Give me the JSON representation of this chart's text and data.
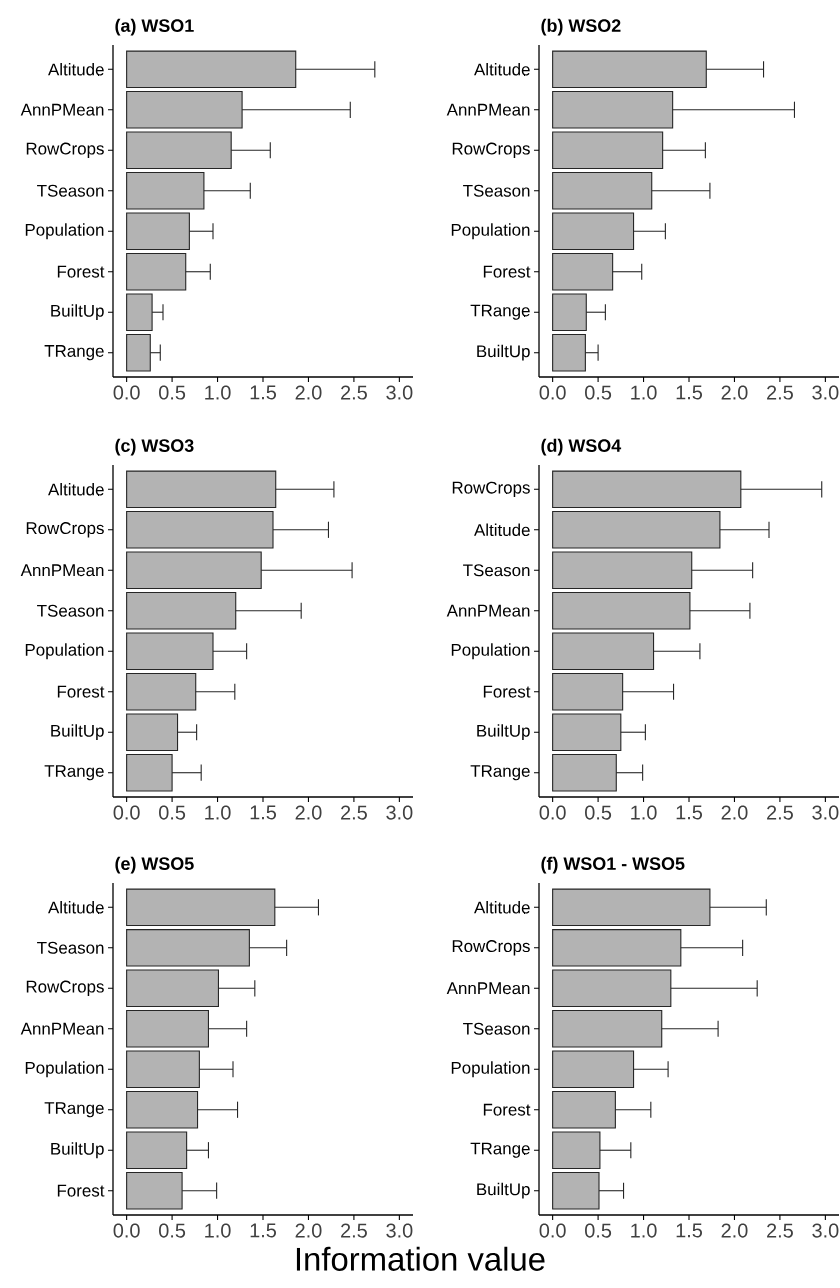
{
  "chart_data": [
    {
      "type": "bar",
      "orientation": "horizontal",
      "title": "(a) WSO1",
      "color": "#b3b3b3",
      "categories": [
        "Altitude",
        "AnnPMean",
        "RowCrops",
        "TSeason",
        "Population",
        "Forest",
        "BuiltUp",
        "TRange"
      ],
      "values": [
        1.86,
        1.27,
        1.15,
        0.85,
        0.69,
        0.65,
        0.28,
        0.26
      ],
      "errors": [
        [
          1.86,
          2.73
        ],
        [
          1.27,
          2.46
        ],
        [
          1.15,
          1.58
        ],
        [
          0.85,
          1.36
        ],
        [
          0.69,
          0.95
        ],
        [
          0.65,
          0.92
        ],
        [
          0.28,
          0.4
        ],
        [
          0.26,
          0.37
        ]
      ],
      "xlim": [
        -0.15,
        3.15
      ],
      "xticks": [
        {
          "value": 0,
          "label": "0.0"
        },
        {
          "value": 0.5,
          "label": "0.5"
        },
        {
          "value": 1,
          "label": "1.0"
        },
        {
          "value": 1.5,
          "label": "1.5"
        },
        {
          "value": 2,
          "label": "2.0"
        },
        {
          "value": 2.5,
          "label": "2.5"
        },
        {
          "value": 3,
          "label": "3.0"
        }
      ]
    },
    {
      "type": "bar",
      "orientation": "horizontal",
      "title": "(b) WSO2",
      "color": "#b3b3b3",
      "categories": [
        "Altitude",
        "AnnPMean",
        "RowCrops",
        "TSeason",
        "Population",
        "Forest",
        "TRange",
        "BuiltUp"
      ],
      "values": [
        1.69,
        1.32,
        1.21,
        1.09,
        0.89,
        0.66,
        0.37,
        0.36
      ],
      "errors": [
        [
          1.69,
          2.32
        ],
        [
          1.32,
          2.66
        ],
        [
          1.21,
          1.68
        ],
        [
          1.09,
          1.73
        ],
        [
          0.89,
          1.24
        ],
        [
          0.66,
          0.98
        ],
        [
          0.37,
          0.58
        ],
        [
          0.36,
          0.5
        ]
      ],
      "xlim": [
        -0.15,
        3.15
      ],
      "xticks": [
        {
          "value": 0,
          "label": "0.0"
        },
        {
          "value": 0.5,
          "label": "0.5"
        },
        {
          "value": 1,
          "label": "1.0"
        },
        {
          "value": 1.5,
          "label": "1.5"
        },
        {
          "value": 2,
          "label": "2.0"
        },
        {
          "value": 2.5,
          "label": "2.5"
        },
        {
          "value": 3,
          "label": "3.0"
        }
      ]
    },
    {
      "type": "bar",
      "orientation": "horizontal",
      "title": "(c) WSO3",
      "color": "#b3b3b3",
      "categories": [
        "Altitude",
        "RowCrops",
        "AnnPMean",
        "TSeason",
        "Population",
        "Forest",
        "BuiltUp",
        "TRange"
      ],
      "values": [
        1.64,
        1.61,
        1.48,
        1.2,
        0.95,
        0.76,
        0.56,
        0.5
      ],
      "errors": [
        [
          1.64,
          2.28
        ],
        [
          1.61,
          2.22
        ],
        [
          1.48,
          2.48
        ],
        [
          1.2,
          1.92
        ],
        [
          0.95,
          1.32
        ],
        [
          0.76,
          1.19
        ],
        [
          0.56,
          0.77
        ],
        [
          0.5,
          0.82
        ]
      ],
      "xlim": [
        -0.15,
        3.15
      ],
      "xticks": [
        {
          "value": 0,
          "label": "0.0"
        },
        {
          "value": 0.5,
          "label": "0.5"
        },
        {
          "value": 1,
          "label": "1.0"
        },
        {
          "value": 1.5,
          "label": "1.5"
        },
        {
          "value": 2,
          "label": "2.0"
        },
        {
          "value": 2.5,
          "label": "2.5"
        },
        {
          "value": 3,
          "label": "3.0"
        }
      ]
    },
    {
      "type": "bar",
      "orientation": "horizontal",
      "title": "(d) WSO4",
      "color": "#b3b3b3",
      "categories": [
        "RowCrops",
        "Altitude",
        "TSeason",
        "AnnPMean",
        "Population",
        "Forest",
        "BuiltUp",
        "TRange"
      ],
      "values": [
        2.07,
        1.84,
        1.53,
        1.51,
        1.11,
        0.77,
        0.75,
        0.7
      ],
      "errors": [
        [
          2.07,
          2.96
        ],
        [
          1.84,
          2.38
        ],
        [
          1.53,
          2.2
        ],
        [
          1.51,
          2.17
        ],
        [
          1.11,
          1.62
        ],
        [
          0.77,
          1.33
        ],
        [
          0.75,
          1.02
        ],
        [
          0.7,
          0.99
        ]
      ],
      "xlim": [
        -0.15,
        3.15
      ],
      "xticks": [
        {
          "value": 0,
          "label": "0.0"
        },
        {
          "value": 0.5,
          "label": "0.5"
        },
        {
          "value": 1,
          "label": "1.0"
        },
        {
          "value": 1.5,
          "label": "1.5"
        },
        {
          "value": 2,
          "label": "2.0"
        },
        {
          "value": 2.5,
          "label": "2.5"
        },
        {
          "value": 3,
          "label": "3.0"
        }
      ]
    },
    {
      "type": "bar",
      "orientation": "horizontal",
      "title": "(e) WSO5",
      "color": "#b3b3b3",
      "categories": [
        "Altitude",
        "TSeason",
        "RowCrops",
        "AnnPMean",
        "Population",
        "TRange",
        "BuiltUp",
        "Forest"
      ],
      "values": [
        1.63,
        1.35,
        1.01,
        0.9,
        0.8,
        0.78,
        0.66,
        0.61
      ],
      "errors": [
        [
          1.63,
          2.11
        ],
        [
          1.35,
          1.76
        ],
        [
          1.01,
          1.41
        ],
        [
          0.9,
          1.32
        ],
        [
          0.8,
          1.17
        ],
        [
          0.78,
          1.22
        ],
        [
          0.66,
          0.9
        ],
        [
          0.61,
          0.99
        ]
      ],
      "xlim": [
        -0.15,
        3.15
      ],
      "xticks": [
        {
          "value": 0,
          "label": "0.0"
        },
        {
          "value": 0.5,
          "label": "0.5"
        },
        {
          "value": 1,
          "label": "1.0"
        },
        {
          "value": 1.5,
          "label": "1.5"
        },
        {
          "value": 2,
          "label": "2.0"
        },
        {
          "value": 2.5,
          "label": "2.5"
        },
        {
          "value": 3,
          "label": "3.0"
        }
      ]
    },
    {
      "type": "bar",
      "orientation": "horizontal",
      "title": "(f) WSO1 - WSO5",
      "color": "#b3b3b3",
      "xlabel": "Information value",
      "categories": [
        "Altitude",
        "RowCrops",
        "AnnPMean",
        "TSeason",
        "Population",
        "Forest",
        "TRange",
        "BuiltUp"
      ],
      "values": [
        1.73,
        1.41,
        1.3,
        1.2,
        0.89,
        0.69,
        0.52,
        0.51
      ],
      "errors": [
        [
          1.73,
          2.35
        ],
        [
          1.41,
          2.09
        ],
        [
          1.3,
          2.25
        ],
        [
          1.2,
          1.82
        ],
        [
          0.89,
          1.27
        ],
        [
          0.69,
          1.08
        ],
        [
          0.52,
          0.86
        ],
        [
          0.51,
          0.78
        ]
      ],
      "xlim": [
        -0.15,
        3.15
      ],
      "xticks": [
        {
          "value": 0,
          "label": "0.0"
        },
        {
          "value": 0.5,
          "label": "0.5"
        },
        {
          "value": 1,
          "label": "1.0"
        },
        {
          "value": 1.5,
          "label": "1.5"
        },
        {
          "value": 2,
          "label": "2.0"
        },
        {
          "value": 2.5,
          "label": "2.5"
        },
        {
          "value": 3,
          "label": "3.0"
        }
      ]
    }
  ]
}
